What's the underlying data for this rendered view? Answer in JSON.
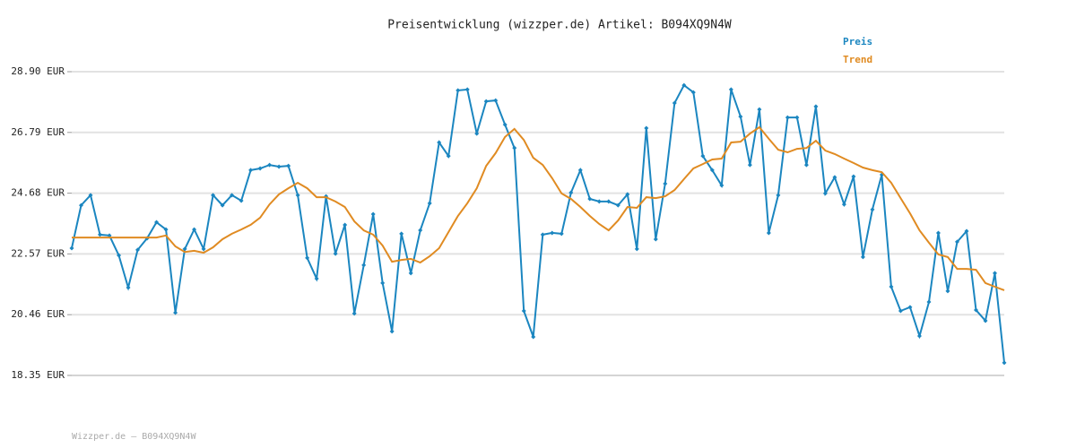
{
  "chart_data": {
    "type": "line",
    "title": "Preisentwicklung (wizzper.de) Artikel: B094XQ9N4W",
    "ylim": [
      18.35,
      28.9
    ],
    "yticks": [
      {
        "value": 18.35,
        "label": "18.35 EUR"
      },
      {
        "value": 20.46,
        "label": "20.46 EUR"
      },
      {
        "value": 22.57,
        "label": "22.57 EUR"
      },
      {
        "value": 24.68,
        "label": "24.68 EUR"
      },
      {
        "value": 26.79,
        "label": "26.79 EUR"
      },
      {
        "value": 28.9,
        "label": "28.90 EUR"
      }
    ],
    "grid": true,
    "legend": "top-right",
    "series": [
      {
        "name": "Preis",
        "color": "#1b86c0",
        "values": [
          22.77,
          24.26,
          24.61,
          23.24,
          23.21,
          22.52,
          21.4,
          22.71,
          23.11,
          23.67,
          23.42,
          20.53,
          22.74,
          23.42,
          22.74,
          24.61,
          24.26,
          24.61,
          24.42,
          25.48,
          25.54,
          25.66,
          25.6,
          25.63,
          24.61,
          22.43,
          21.71,
          24.57,
          22.58,
          23.58,
          20.5,
          22.18,
          23.95,
          21.56,
          19.88,
          23.27,
          21.9,
          23.39,
          24.33,
          26.44,
          25.97,
          28.25,
          28.28,
          26.75,
          27.87,
          27.9,
          27.06,
          26.25,
          20.59,
          19.69,
          23.24,
          23.3,
          23.27,
          24.7,
          25.48,
          24.48,
          24.39,
          24.39,
          24.26,
          24.64,
          22.74,
          26.94,
          23.08,
          25.01,
          27.81,
          28.43,
          28.18,
          25.97,
          25.48,
          24.95,
          28.28,
          27.34,
          25.66,
          27.59,
          23.3,
          24.61,
          27.31,
          27.31,
          25.66,
          27.69,
          24.67,
          25.23,
          24.29,
          25.26,
          22.46,
          24.11,
          25.32,
          21.43,
          20.59,
          20.72,
          19.72,
          20.9,
          23.3,
          21.28,
          22.99,
          23.36,
          20.62,
          20.25,
          21.9,
          18.79
        ]
      },
      {
        "name": "Trend",
        "color": "#e08b22",
        "values": [
          23.14,
          23.14,
          23.14,
          23.14,
          23.14,
          23.14,
          23.14,
          23.14,
          23.14,
          23.14,
          23.21,
          22.83,
          22.64,
          22.68,
          22.61,
          22.8,
          23.08,
          23.27,
          23.42,
          23.58,
          23.83,
          24.29,
          24.64,
          24.85,
          25.04,
          24.85,
          24.54,
          24.54,
          24.39,
          24.2,
          23.7,
          23.39,
          23.24,
          22.86,
          22.3,
          22.36,
          22.4,
          22.27,
          22.49,
          22.77,
          23.33,
          23.89,
          24.33,
          24.85,
          25.63,
          26.07,
          26.63,
          26.91,
          26.53,
          25.91,
          25.66,
          25.2,
          24.67,
          24.48,
          24.2,
          23.89,
          23.61,
          23.39,
          23.73,
          24.2,
          24.17,
          24.54,
          24.51,
          24.57,
          24.79,
          25.17,
          25.54,
          25.69,
          25.85,
          25.88,
          26.44,
          26.47,
          26.75,
          26.97,
          26.57,
          26.19,
          26.1,
          26.22,
          26.25,
          26.5,
          26.16,
          26.04,
          25.88,
          25.73,
          25.57,
          25.48,
          25.41,
          25.04,
          24.51,
          23.98,
          23.39,
          22.96,
          22.55,
          22.46,
          22.05,
          22.05,
          22.02,
          21.56,
          21.43,
          21.31
        ]
      }
    ]
  },
  "footer": "Wizzper.de – B094XQ9N4W"
}
